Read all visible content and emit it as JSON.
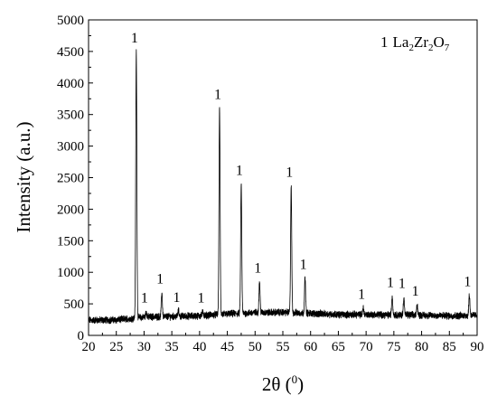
{
  "chart_data": {
    "type": "line",
    "title": "",
    "xlabel": "2θ (",
    "xlabel_sup": "0",
    "xlabel_close": ")",
    "ylabel": "Intensity (a.u.)",
    "xlim": [
      20,
      90
    ],
    "ylim": [
      0,
      5000
    ],
    "x_ticks": [
      20,
      25,
      30,
      35,
      40,
      45,
      50,
      55,
      60,
      65,
      70,
      75,
      80,
      85,
      90
    ],
    "y_ticks": [
      0,
      500,
      1000,
      1500,
      2000,
      2500,
      3000,
      3500,
      4000,
      4500,
      5000
    ],
    "grid": false,
    "legend": {
      "marker": "1",
      "formula": [
        {
          "text": "La",
          "sub": "2"
        },
        {
          "text": "Zr",
          "sub": "2"
        },
        {
          "text": "O",
          "sub": "7"
        }
      ],
      "position": "top-right"
    },
    "baseline": {
      "points": [
        [
          20,
          240
        ],
        [
          25,
          245
        ],
        [
          28,
          270
        ],
        [
          30,
          290
        ],
        [
          35,
          300
        ],
        [
          40,
          310
        ],
        [
          43,
          330
        ],
        [
          50,
          360
        ],
        [
          55,
          365
        ],
        [
          60,
          350
        ],
        [
          65,
          330
        ],
        [
          70,
          330
        ],
        [
          80,
          320
        ],
        [
          85,
          310
        ],
        [
          90,
          320
        ]
      ]
    },
    "peaks": [
      {
        "x": 28.6,
        "y": 4500,
        "label": "1"
      },
      {
        "x": 30.4,
        "y": 380,
        "label": "1"
      },
      {
        "x": 33.2,
        "y": 680,
        "label": "1"
      },
      {
        "x": 36.2,
        "y": 390,
        "label": "1"
      },
      {
        "x": 40.6,
        "y": 380,
        "label": "1"
      },
      {
        "x": 43.6,
        "y": 3600,
        "label": "1"
      },
      {
        "x": 47.5,
        "y": 2400,
        "label": "1"
      },
      {
        "x": 50.8,
        "y": 850,
        "label": "1"
      },
      {
        "x": 56.5,
        "y": 2370,
        "label": "1"
      },
      {
        "x": 59.0,
        "y": 910,
        "label": "1"
      },
      {
        "x": 69.5,
        "y": 440,
        "label": "1"
      },
      {
        "x": 74.7,
        "y": 620,
        "label": "1"
      },
      {
        "x": 76.8,
        "y": 610,
        "label": "1"
      },
      {
        "x": 79.2,
        "y": 490,
        "label": "1"
      },
      {
        "x": 88.6,
        "y": 640,
        "label": "1"
      }
    ]
  }
}
